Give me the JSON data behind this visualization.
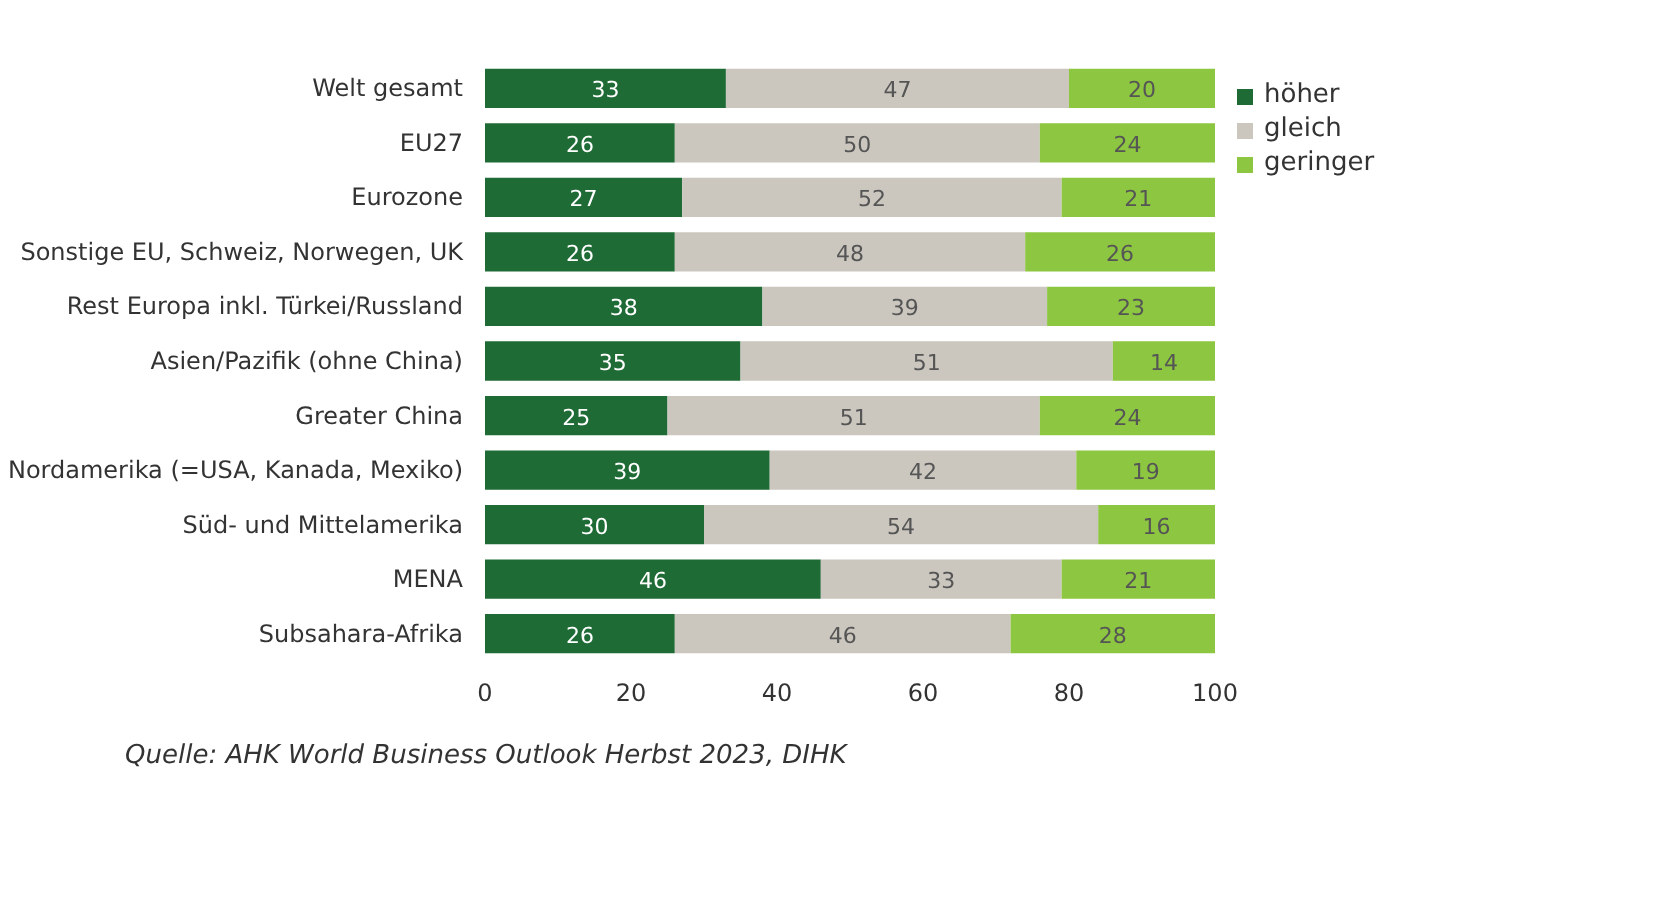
{
  "chart_data": {
    "type": "bar",
    "orientation": "horizontal",
    "stacked": true,
    "categories": [
      "Welt gesamt",
      "EU27",
      "Eurozone",
      "Sonstige EU, Schweiz, Norwegen, UK",
      "Rest Europa inkl. Türkei/Russland",
      "Asien/Pazifik (ohne China)",
      "Greater China",
      "Nordamerika (=USA, Kanada, Mexiko)",
      "Süd- und Mittelamerika",
      "MENA",
      "Subsahara-Afrika"
    ],
    "series": [
      {
        "name": "höher",
        "color": "#1f6b35",
        "values": [
          33,
          26,
          27,
          26,
          38,
          35,
          25,
          39,
          30,
          46,
          26
        ]
      },
      {
        "name": "gleich",
        "color": "#cbc7bf",
        "values": [
          47,
          50,
          52,
          48,
          39,
          51,
          51,
          42,
          54,
          33,
          46
        ]
      },
      {
        "name": "geringer",
        "color": "#8dc641",
        "values": [
          20,
          24,
          21,
          26,
          23,
          14,
          24,
          19,
          16,
          21,
          28
        ]
      }
    ],
    "xlim": [
      0,
      100
    ],
    "xticks": [
      0,
      20,
      40,
      60,
      80,
      100
    ],
    "grid": false,
    "legend": "top right",
    "data_labels": true,
    "annotations": [
      "Quelle: AHK World Business Outlook Herbst 2023, DIHK"
    ]
  }
}
